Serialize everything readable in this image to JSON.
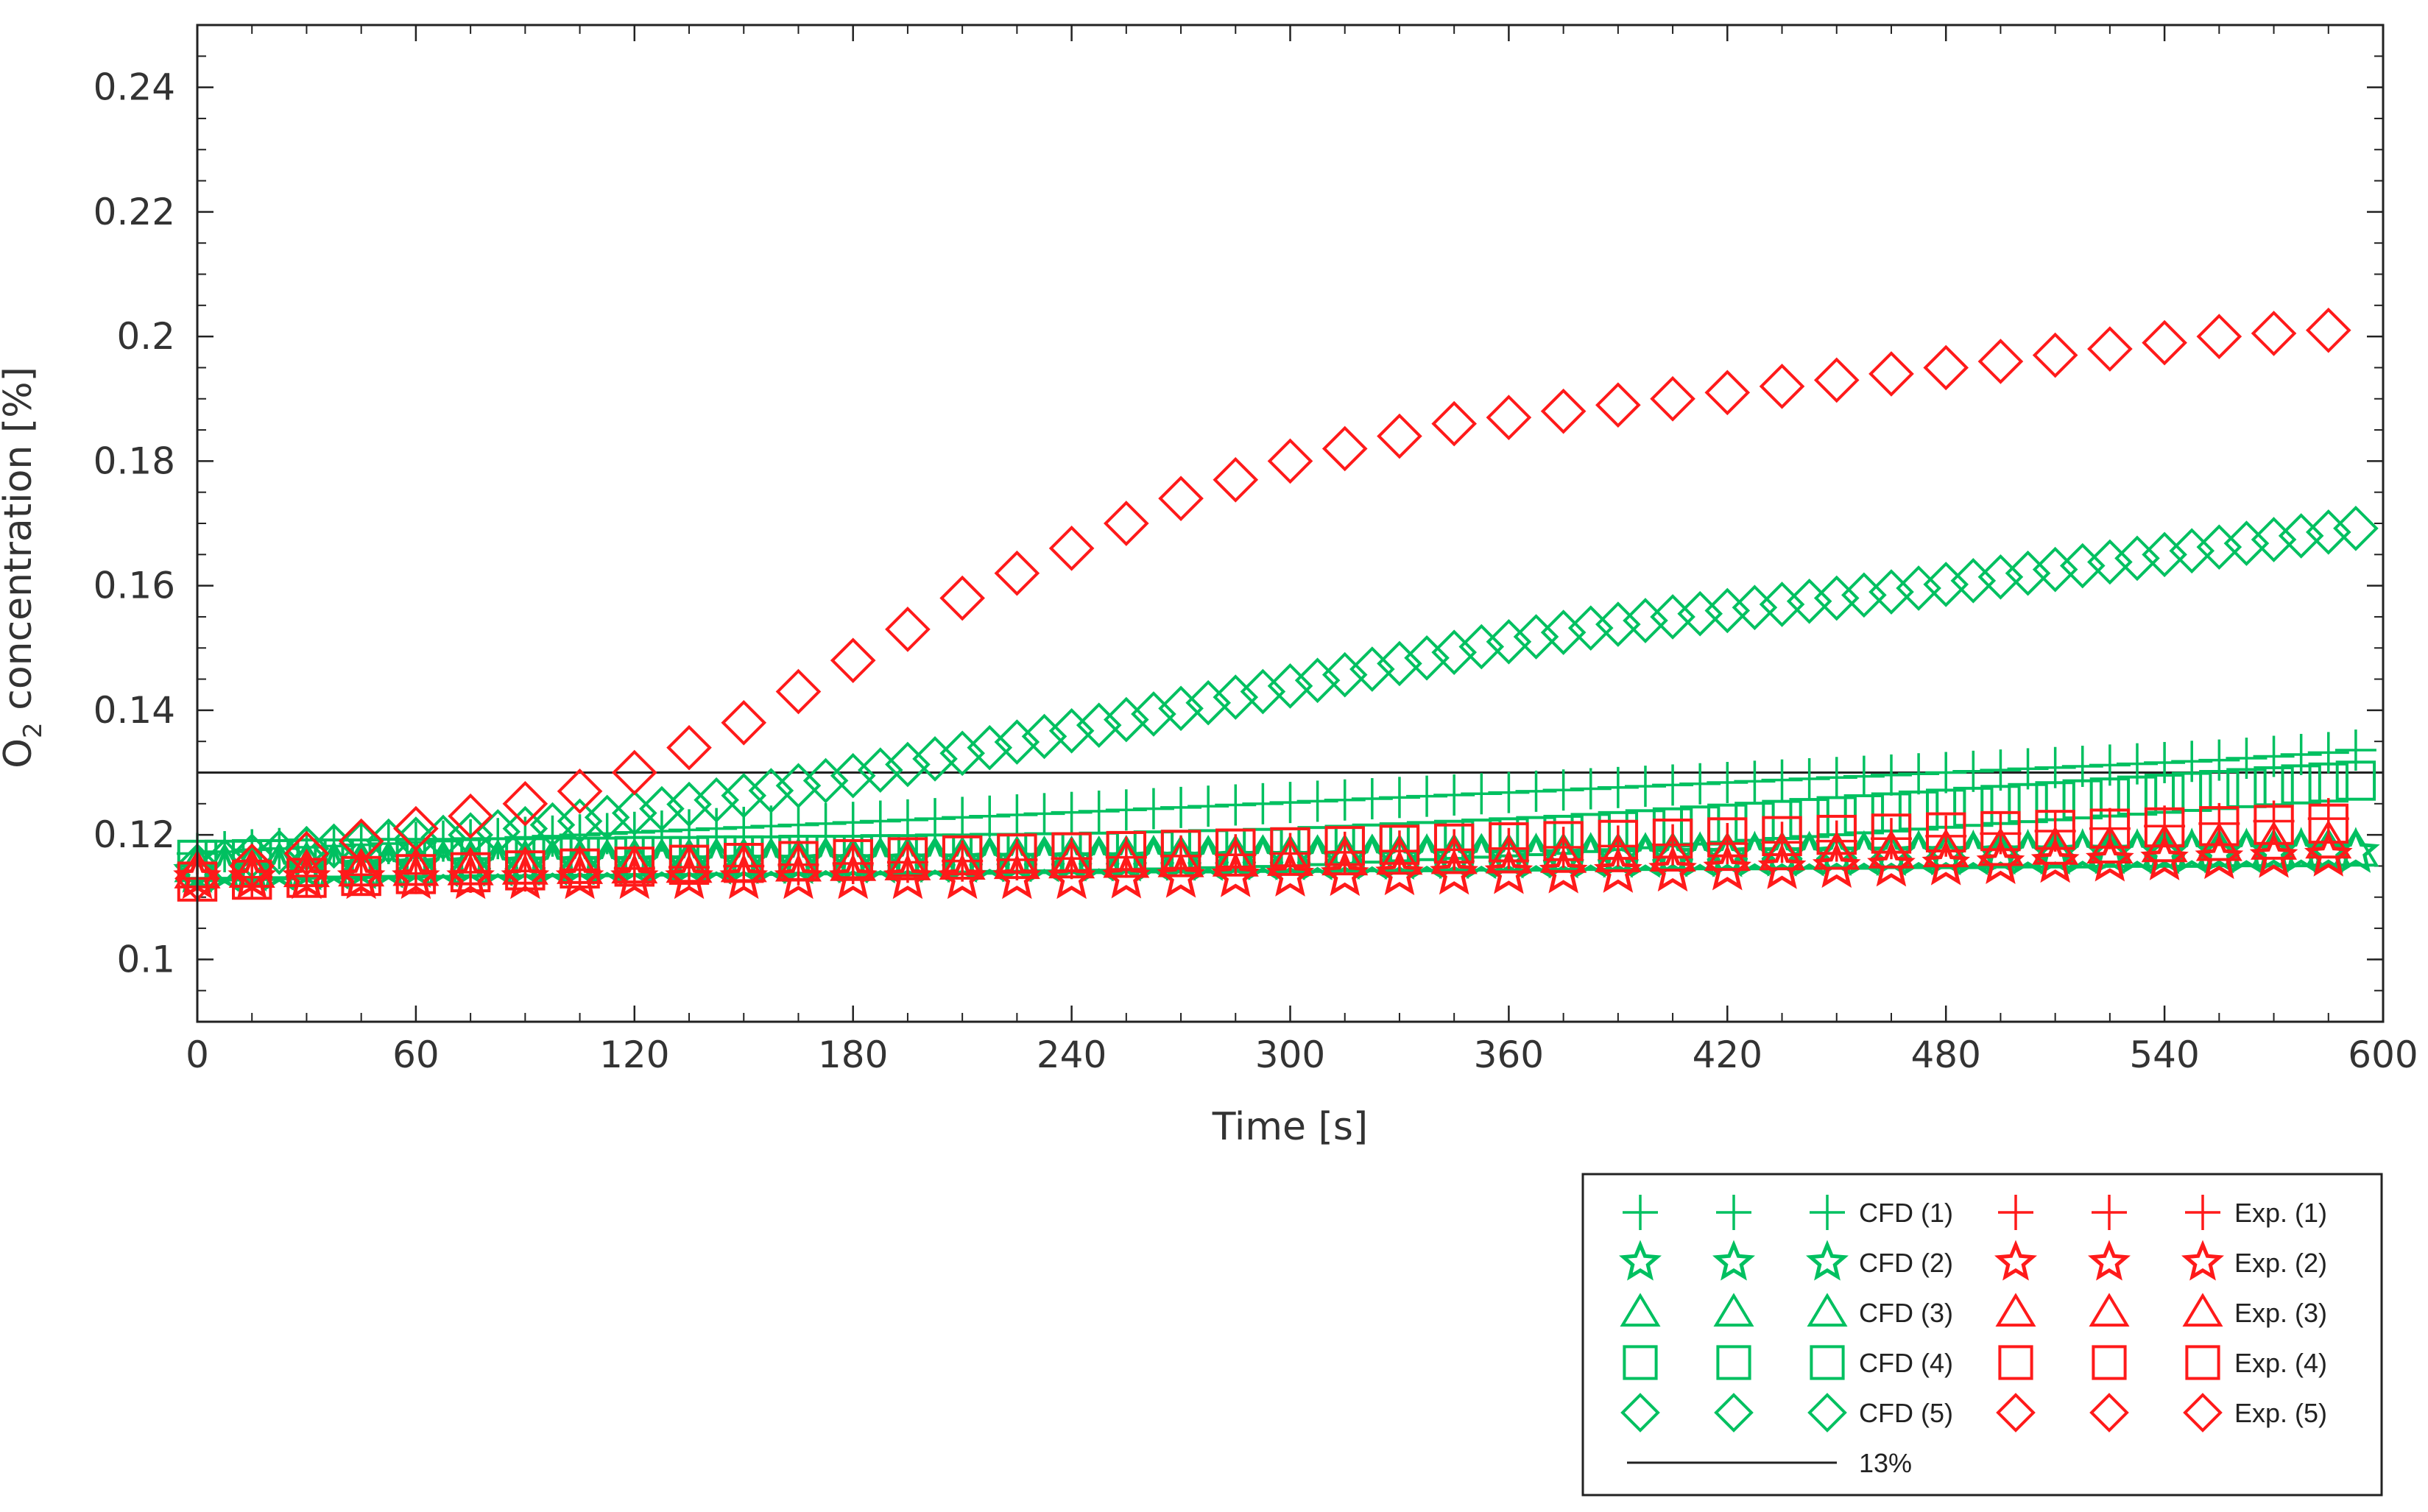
{
  "chart_data": {
    "type": "scatter",
    "xlabel": "Time [s]",
    "ylabel_main": "O",
    "ylabel_sub": "2",
    "ylabel_rest": " concentration [%]",
    "xlim": [
      0,
      600
    ],
    "ylim": [
      0.09,
      0.25
    ],
    "xticks": [
      0,
      60,
      120,
      180,
      240,
      300,
      360,
      420,
      480,
      540,
      600
    ],
    "xtick_labels": [
      "0",
      "60",
      "120",
      "180",
      "240",
      "300",
      "360",
      "420",
      "480",
      "540",
      "600"
    ],
    "yticks": [
      0.1,
      0.12,
      0.14,
      0.16,
      0.18,
      0.2,
      0.22,
      0.24
    ],
    "ytick_labels": [
      "0.1",
      "0.12",
      "0.14",
      "0.16",
      "0.18",
      "0.2",
      "0.22",
      "0.24"
    ],
    "reference_line": {
      "name": "13%",
      "y": 0.13,
      "color": "#222222"
    },
    "colors": {
      "cfd": "#00c060",
      "exp": "#ff1a1a"
    },
    "series": [
      {
        "name": "CFD (1)",
        "marker": "plus",
        "color": "#00c060",
        "x_start": 0,
        "x_step": 7.5,
        "values": [
          0.117,
          0.1173,
          0.1176,
          0.1178,
          0.118,
          0.1182,
          0.1184,
          0.1186,
          0.1188,
          0.119,
          0.1192,
          0.1194,
          0.1196,
          0.1198,
          0.12,
          0.1202,
          0.1204,
          0.1206,
          0.1208,
          0.121,
          0.1212,
          0.1214,
          0.1216,
          0.1218,
          0.122,
          0.1222,
          0.1224,
          0.1226,
          0.1228,
          0.123,
          0.1232,
          0.1234,
          0.1236,
          0.1238,
          0.124,
          0.1242,
          0.1244,
          0.1246,
          0.1248,
          0.125,
          0.1252,
          0.1254,
          0.1256,
          0.1258,
          0.126,
          0.1262,
          0.1264,
          0.1266,
          0.1268,
          0.127,
          0.1272,
          0.1274,
          0.1276,
          0.1278,
          0.128,
          0.1282,
          0.1284,
          0.1286,
          0.1288,
          0.129,
          0.1292,
          0.1294,
          0.1296,
          0.1298,
          0.13,
          0.1302,
          0.1304,
          0.1306,
          0.1308,
          0.131,
          0.1312,
          0.1314,
          0.1316,
          0.1318,
          0.132,
          0.1323,
          0.1326,
          0.1329,
          0.1332,
          0.1336
        ]
      },
      {
        "name": "CFD (2)",
        "marker": "star",
        "color": "#00c060",
        "x_start": 0,
        "x_step": 7.5,
        "values": [
          0.114,
          0.1141,
          0.1142,
          0.1143,
          0.1144,
          0.1145,
          0.1146,
          0.1147,
          0.1148,
          0.1149,
          0.115,
          0.115,
          0.1151,
          0.1151,
          0.1152,
          0.1152,
          0.1152,
          0.1153,
          0.1153,
          0.1153,
          0.1154,
          0.1154,
          0.1154,
          0.1155,
          0.1155,
          0.1155,
          0.1156,
          0.1156,
          0.1156,
          0.1157,
          0.1157,
          0.1157,
          0.1158,
          0.1158,
          0.1158,
          0.1159,
          0.1159,
          0.1159,
          0.116,
          0.116,
          0.116,
          0.116,
          0.1161,
          0.1161,
          0.1161,
          0.1162,
          0.1162,
          0.1162,
          0.1163,
          0.1163,
          0.1163,
          0.1164,
          0.1164,
          0.1164,
          0.1165,
          0.1165,
          0.1165,
          0.1166,
          0.1166,
          0.1166,
          0.1167,
          0.1167,
          0.1167,
          0.1168,
          0.1168,
          0.1168,
          0.1169,
          0.1169,
          0.1169,
          0.117,
          0.117,
          0.117,
          0.117,
          0.1171,
          0.1171,
          0.1171,
          0.1172,
          0.1172,
          0.1172,
          0.1172
        ]
      },
      {
        "name": "CFD (3)",
        "marker": "triangle",
        "color": "#00c060",
        "x_start": 0,
        "x_step": 7.5,
        "values": [
          0.115,
          0.1151,
          0.1152,
          0.1153,
          0.1154,
          0.1154,
          0.1155,
          0.1155,
          0.1156,
          0.1156,
          0.1157,
          0.1157,
          0.1157,
          0.1158,
          0.1158,
          0.1158,
          0.1159,
          0.1159,
          0.1159,
          0.116,
          0.116,
          0.116,
          0.116,
          0.1161,
          0.1161,
          0.1161,
          0.1162,
          0.1162,
          0.1162,
          0.1162,
          0.1163,
          0.1163,
          0.1163,
          0.1163,
          0.1164,
          0.1164,
          0.1164,
          0.1164,
          0.1165,
          0.1165,
          0.1165,
          0.1165,
          0.1166,
          0.1166,
          0.1166,
          0.1166,
          0.1167,
          0.1167,
          0.1167,
          0.1167,
          0.1168,
          0.1168,
          0.1168,
          0.1168,
          0.1169,
          0.1169,
          0.1169,
          0.1169,
          0.117,
          0.117,
          0.117,
          0.117,
          0.1171,
          0.1171,
          0.1171,
          0.1171,
          0.1172,
          0.1172,
          0.1172,
          0.1172,
          0.1173,
          0.1173,
          0.1173,
          0.1173,
          0.1174,
          0.1174,
          0.1174,
          0.1174,
          0.1175,
          0.1175
        ]
      },
      {
        "name": "CFD (4)",
        "marker": "square",
        "color": "#00c060",
        "x_start": 0,
        "x_step": 7.5,
        "values": [
          0.116,
          0.116,
          0.1161,
          0.1161,
          0.1162,
          0.1162,
          0.1162,
          0.1163,
          0.1163,
          0.1163,
          0.1164,
          0.1164,
          0.1164,
          0.1165,
          0.1165,
          0.1165,
          0.1166,
          0.1166,
          0.1166,
          0.1167,
          0.1167,
          0.1167,
          0.1168,
          0.1168,
          0.1168,
          0.1169,
          0.1169,
          0.117,
          0.117,
          0.1171,
          0.1171,
          0.1172,
          0.1172,
          0.1173,
          0.1174,
          0.1175,
          0.1176,
          0.1177,
          0.1178,
          0.1179,
          0.118,
          0.1182,
          0.1184,
          0.1186,
          0.1188,
          0.119,
          0.1192,
          0.1194,
          0.1196,
          0.1198,
          0.12,
          0.1203,
          0.1206,
          0.1209,
          0.1212,
          0.1215,
          0.1218,
          0.1221,
          0.1224,
          0.1227,
          0.123,
          0.1233,
          0.1236,
          0.1239,
          0.1242,
          0.1245,
          0.1248,
          0.1251,
          0.1254,
          0.1257,
          0.126,
          0.1263,
          0.1266,
          0.1269,
          0.1272,
          0.1275,
          0.1278,
          0.1281,
          0.1284,
          0.1287
        ]
      },
      {
        "name": "CFD (5)",
        "marker": "diamond",
        "color": "#00c060",
        "x_start": 0,
        "x_step": 7.5,
        "values": [
          0.115,
          0.1158,
          0.1166,
          0.1172,
          0.1178,
          0.1182,
          0.1186,
          0.119,
          0.1193,
          0.1196,
          0.12,
          0.1205,
          0.121,
          0.1216,
          0.1222,
          0.1228,
          0.1235,
          0.1242,
          0.1249,
          0.1256,
          0.1263,
          0.1271,
          0.1279,
          0.1287,
          0.1295,
          0.1304,
          0.1313,
          0.1322,
          0.1331,
          0.134,
          0.1349,
          0.1358,
          0.1367,
          0.1376,
          0.1385,
          0.1394,
          0.1403,
          0.1412,
          0.1421,
          0.143,
          0.1439,
          0.1448,
          0.1457,
          0.1466,
          0.1475,
          0.1484,
          0.1493,
          0.1502,
          0.151,
          0.1518,
          0.1525,
          0.1532,
          0.1538,
          0.1544,
          0.155,
          0.1555,
          0.156,
          0.1565,
          0.157,
          0.1575,
          0.158,
          0.1585,
          0.159,
          0.1596,
          0.1602,
          0.1608,
          0.1614,
          0.162,
          0.1626,
          0.1632,
          0.1638,
          0.1644,
          0.165,
          0.1656,
          0.1662,
          0.1668,
          0.1674,
          0.168,
          0.1686,
          0.1692
        ]
      },
      {
        "name": "Exp. (1)",
        "marker": "plus",
        "color": "#ff1a1a",
        "x_start": 0,
        "x_step": 15,
        "values": [
          0.113,
          0.1132,
          0.1134,
          0.1136,
          0.1138,
          0.114,
          0.1142,
          0.1144,
          0.1146,
          0.1148,
          0.115,
          0.1152,
          0.1154,
          0.1156,
          0.1158,
          0.116,
          0.1162,
          0.1164,
          0.1166,
          0.1168,
          0.117,
          0.1172,
          0.1174,
          0.1176,
          0.1178,
          0.118,
          0.1182,
          0.1184,
          0.1186,
          0.1188,
          0.119,
          0.1194,
          0.1198,
          0.1202,
          0.1206,
          0.121,
          0.1214,
          0.1218,
          0.1222,
          0.1226
        ]
      },
      {
        "name": "Exp. (2)",
        "marker": "star",
        "color": "#ff1a1a",
        "x_start": 0,
        "x_step": 15,
        "values": [
          0.113,
          0.113,
          0.113,
          0.113,
          0.113,
          0.113,
          0.113,
          0.113,
          0.113,
          0.113,
          0.113,
          0.113,
          0.113,
          0.113,
          0.113,
          0.113,
          0.113,
          0.1131,
          0.1132,
          0.1133,
          0.1134,
          0.1135,
          0.1136,
          0.1137,
          0.1138,
          0.1139,
          0.114,
          0.1142,
          0.1144,
          0.1146,
          0.1148,
          0.115,
          0.1152,
          0.1154,
          0.1156,
          0.1158,
          0.116,
          0.1162,
          0.1164,
          0.1166
        ]
      },
      {
        "name": "Exp. (3)",
        "marker": "triangle",
        "color": "#ff1a1a",
        "x_start": 0,
        "x_step": 15,
        "values": [
          0.114,
          0.1141,
          0.1142,
          0.1143,
          0.1144,
          0.1145,
          0.1146,
          0.1147,
          0.1148,
          0.1149,
          0.115,
          0.1151,
          0.1152,
          0.1153,
          0.1154,
          0.1155,
          0.1156,
          0.1157,
          0.1158,
          0.1159,
          0.116,
          0.1161,
          0.1162,
          0.1163,
          0.1164,
          0.1165,
          0.1166,
          0.1167,
          0.1168,
          0.1169,
          0.117,
          0.1172,
          0.1174,
          0.1176,
          0.1178,
          0.118,
          0.1182,
          0.1184,
          0.1186,
          0.1188
        ]
      },
      {
        "name": "Exp. (4)",
        "marker": "square",
        "color": "#ff1a1a",
        "x_start": 0,
        "x_step": 15,
        "values": [
          0.1125,
          0.1128,
          0.1131,
          0.1134,
          0.1137,
          0.114,
          0.1143,
          0.1146,
          0.1149,
          0.1152,
          0.1155,
          0.1158,
          0.1161,
          0.1164,
          0.1167,
          0.117,
          0.1172,
          0.1174,
          0.1176,
          0.1178,
          0.118,
          0.1182,
          0.1184,
          0.1186,
          0.1188,
          0.119,
          0.1192,
          0.1194,
          0.1196,
          0.1198,
          0.12,
          0.1202,
          0.1204,
          0.1206,
          0.1208,
          0.121,
          0.1212,
          0.1214,
          0.1216,
          0.1218
        ]
      },
      {
        "name": "Exp. (5)",
        "marker": "diamond",
        "color": "#ff1a1a",
        "x_start": 0,
        "x_step": 15,
        "values": [
          0.113,
          0.115,
          0.117,
          0.119,
          0.121,
          0.123,
          0.125,
          0.127,
          0.13,
          0.134,
          0.138,
          0.143,
          0.148,
          0.153,
          0.158,
          0.162,
          0.166,
          0.17,
          0.174,
          0.177,
          0.18,
          0.182,
          0.184,
          0.186,
          0.187,
          0.188,
          0.189,
          0.19,
          0.191,
          0.192,
          0.193,
          0.194,
          0.195,
          0.196,
          0.197,
          0.198,
          0.199,
          0.2,
          0.2005,
          0.201
        ]
      }
    ],
    "legend": {
      "position": "bottom-right",
      "rows": [
        {
          "cfd_label": "CFD (1)",
          "cfd_marker": "plus",
          "exp_label": "Exp. (1)",
          "exp_marker": "plus"
        },
        {
          "cfd_label": "CFD (2)",
          "cfd_marker": "star",
          "exp_label": "Exp. (2)",
          "exp_marker": "star"
        },
        {
          "cfd_label": "CFD (3)",
          "cfd_marker": "triangle",
          "exp_label": "Exp. (3)",
          "exp_marker": "triangle"
        },
        {
          "cfd_label": "CFD (4)",
          "cfd_marker": "square",
          "exp_label": "Exp. (4)",
          "exp_marker": "square"
        },
        {
          "cfd_label": "CFD (5)",
          "cfd_marker": "diamond",
          "exp_label": "Exp. (5)",
          "exp_marker": "diamond"
        }
      ],
      "line_label": "13%"
    }
  }
}
